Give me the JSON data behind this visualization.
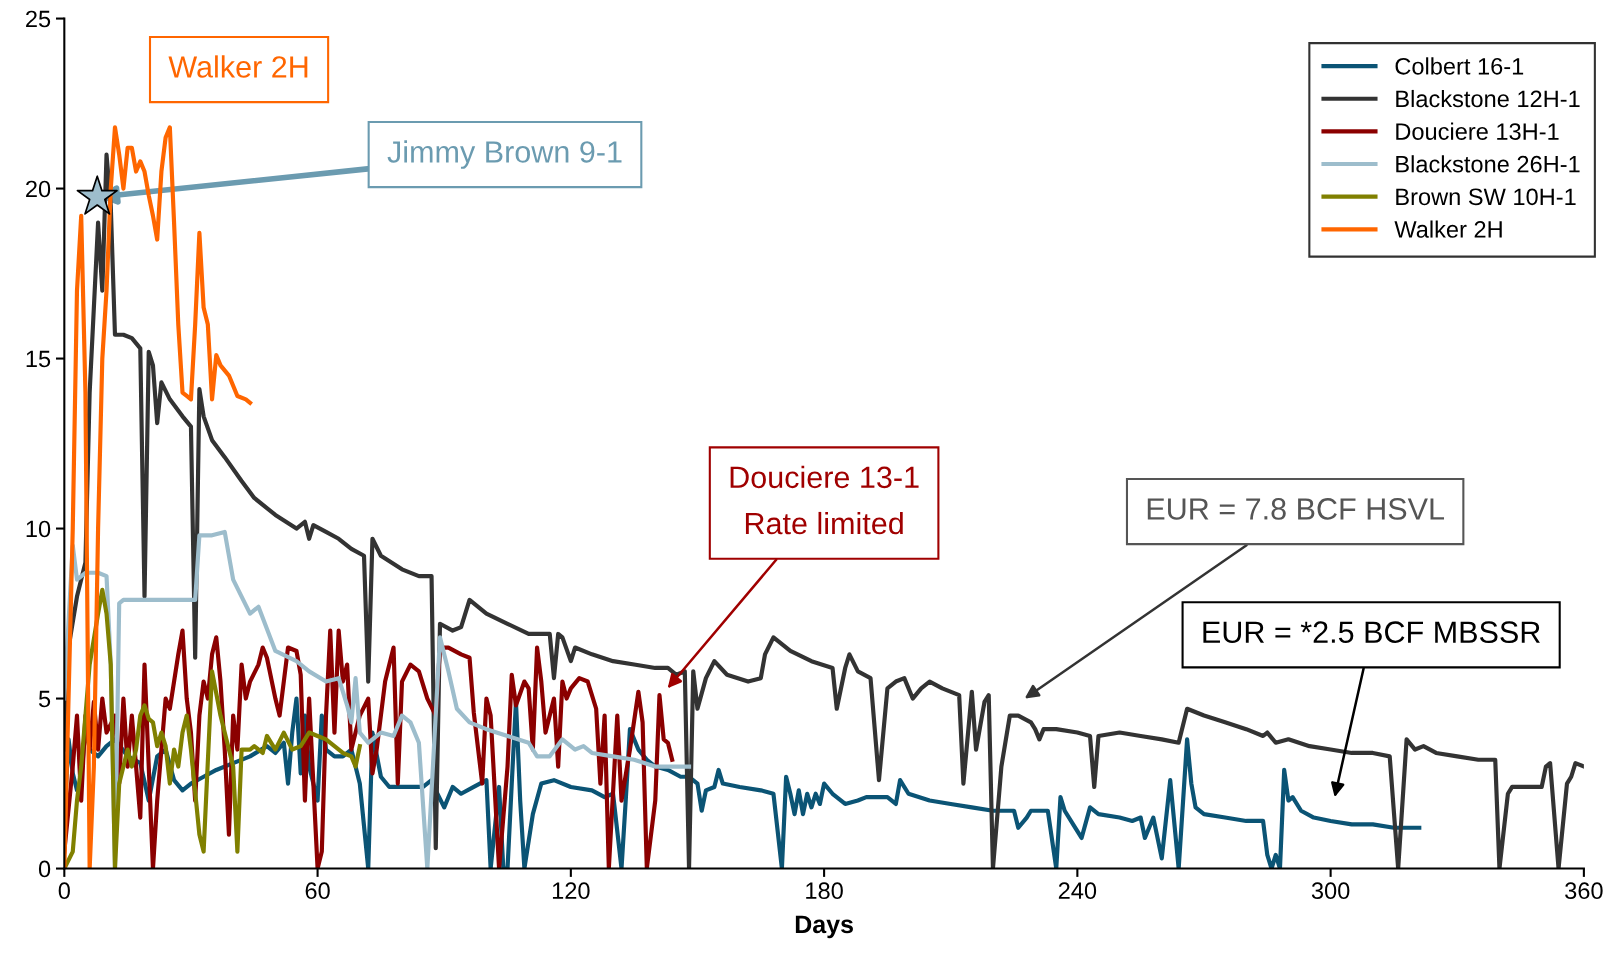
{
  "chart_data": {
    "type": "line",
    "xlabel": "Days",
    "xlim": [
      0,
      360
    ],
    "xticks": [
      0,
      60,
      120,
      180,
      240,
      300,
      360
    ],
    "ylim": [
      0,
      25
    ],
    "yticks": [
      0,
      5,
      10,
      15,
      20,
      25
    ],
    "grid": false,
    "legend": "top right",
    "marker": "none",
    "line_style": "solid",
    "series": [
      {
        "name": "Colbert 16-1",
        "color": "#0b5475",
        "x": [
          0,
          1,
          2,
          3,
          4,
          5,
          6,
          8,
          10,
          12,
          15,
          18,
          20,
          22,
          24,
          26,
          28,
          30,
          33,
          36,
          40,
          44,
          48,
          50,
          52,
          53,
          54,
          55,
          56,
          57,
          58,
          60,
          61,
          62,
          64,
          66,
          68,
          70,
          72,
          73,
          75,
          77,
          80,
          85,
          87,
          88,
          90,
          92,
          94,
          97,
          100,
          101,
          103,
          104,
          105,
          106,
          107,
          108,
          109,
          111,
          113,
          116,
          120,
          125,
          128,
          130,
          132,
          133,
          134,
          136,
          138,
          140,
          143,
          146,
          148,
          150,
          151,
          152,
          154,
          155,
          156,
          160,
          165,
          168,
          170,
          171,
          172,
          173,
          174,
          175,
          176,
          177,
          178,
          179,
          180,
          182,
          185,
          188,
          190,
          195,
          197,
          198,
          200,
          205,
          210,
          215,
          220,
          225,
          226,
          228,
          229,
          231,
          233,
          235,
          236,
          237,
          239,
          241,
          243,
          245,
          250,
          253,
          255,
          256,
          258,
          260,
          262,
          264,
          266,
          267,
          268,
          270,
          275,
          280,
          284,
          285,
          286,
          287,
          288,
          289,
          290,
          291,
          293,
          296,
          300,
          305,
          310,
          315,
          321
        ],
        "values": [
          1.5,
          3.8,
          2.8,
          2.3,
          2.6,
          4.2,
          3.5,
          3.3,
          3.6,
          3.8,
          3.3,
          3.1,
          2.0,
          3.3,
          3.5,
          2.6,
          2.3,
          2.5,
          2.7,
          2.9,
          3.1,
          3.3,
          3.6,
          3.4,
          3.7,
          2.5,
          4.0,
          5.0,
          2.8,
          4.5,
          3.0,
          2.0,
          4.5,
          3.5,
          3.3,
          3.3,
          3.5,
          2.5,
          0,
          4.0,
          2.7,
          2.4,
          2.4,
          2.4,
          2.6,
          2.3,
          1.8,
          2.4,
          2.2,
          2.4,
          2.6,
          0,
          2.4,
          0,
          0,
          2.5,
          4.9,
          2.0,
          0,
          1.6,
          2.5,
          2.6,
          2.4,
          2.3,
          2.1,
          2.2,
          0,
          2.0,
          4.1,
          3.5,
          3.2,
          3.0,
          2.9,
          2.7,
          2.7,
          2.5,
          1.7,
          2.3,
          2.4,
          2.9,
          2.5,
          2.4,
          2.3,
          2.2,
          0,
          2.7,
          2.2,
          1.6,
          2.3,
          1.6,
          2.2,
          1.8,
          2.2,
          1.9,
          2.5,
          2.2,
          1.9,
          2.0,
          2.1,
          2.1,
          1.9,
          2.6,
          2.2,
          2.0,
          1.9,
          1.8,
          1.7,
          1.7,
          1.2,
          1.5,
          1.7,
          1.7,
          1.7,
          0,
          2.1,
          1.7,
          1.3,
          0.9,
          1.8,
          1.6,
          1.5,
          1.4,
          1.5,
          0.9,
          1.5,
          0.3,
          2.6,
          0,
          3.8,
          2.5,
          1.8,
          1.6,
          1.5,
          1.4,
          1.4,
          0.4,
          0,
          0.4,
          0,
          2.9,
          2.0,
          2.1,
          1.7,
          1.5,
          1.4,
          1.3,
          1.3,
          1.2,
          1.2
        ]
      },
      {
        "name": "Blackstone 12H-1",
        "color": "#333333",
        "x": [
          0,
          1,
          3,
          5,
          6,
          8,
          9,
          10,
          11,
          12,
          14,
          16,
          18,
          19,
          20,
          21,
          22,
          23,
          25,
          28,
          30,
          31,
          32,
          33,
          35,
          38,
          42,
          45,
          50,
          55,
          57,
          58,
          59,
          62,
          65,
          68,
          71,
          72,
          73,
          75,
          80,
          84,
          87,
          88,
          89,
          92,
          94,
          96,
          100,
          105,
          110,
          115,
          116,
          117,
          118,
          120,
          121,
          125,
          130,
          135,
          140,
          143,
          145,
          147,
          148,
          149,
          150,
          152,
          154,
          157,
          162,
          165,
          166,
          168,
          172,
          177,
          182,
          183,
          185,
          186,
          188,
          191,
          193,
          195,
          197,
          199,
          201,
          203,
          205,
          208,
          212,
          213,
          215,
          216,
          218,
          219,
          220,
          222,
          224,
          226,
          229,
          230,
          231,
          232,
          235,
          240,
          243,
          244,
          245,
          250,
          255,
          260,
          264,
          266,
          270,
          275,
          280,
          284,
          285,
          287,
          290,
          295,
          300,
          305,
          310,
          314,
          316,
          318,
          320,
          322,
          325,
          330,
          335,
          339,
          340,
          342,
          343,
          348,
          350,
          351,
          352,
          354,
          356,
          357,
          358,
          360
        ],
        "values": [
          3.5,
          6.5,
          8.0,
          9.0,
          14.0,
          19.0,
          17.0,
          21.0,
          19.5,
          15.7,
          15.7,
          15.6,
          15.3,
          8.0,
          15.2,
          14.8,
          13.1,
          14.3,
          13.8,
          13.3,
          13.0,
          6.2,
          14.1,
          13.3,
          12.6,
          12.1,
          11.4,
          10.9,
          10.4,
          10.0,
          10.2,
          9.7,
          10.1,
          9.9,
          9.7,
          9.4,
          9.2,
          5.5,
          9.7,
          9.2,
          8.8,
          8.6,
          8.6,
          0.6,
          7.2,
          7.0,
          7.1,
          7.9,
          7.5,
          7.2,
          6.9,
          6.9,
          5.6,
          6.9,
          6.8,
          6.1,
          6.5,
          6.3,
          6.1,
          6.0,
          5.9,
          5.9,
          5.7,
          5.8,
          0,
          5.8,
          4.7,
          5.6,
          6.1,
          5.7,
          5.5,
          5.6,
          6.3,
          6.8,
          6.4,
          6.1,
          5.9,
          4.7,
          5.9,
          6.3,
          5.8,
          5.6,
          2.6,
          5.3,
          5.5,
          5.6,
          5.0,
          5.3,
          5.5,
          5.3,
          5.1,
          2.5,
          5.2,
          3.5,
          4.9,
          5.1,
          0,
          3.0,
          4.5,
          4.5,
          4.3,
          4.1,
          3.8,
          4.1,
          4.1,
          4.0,
          3.9,
          2.4,
          3.9,
          4.0,
          3.9,
          3.8,
          3.7,
          4.7,
          4.5,
          4.3,
          4.1,
          3.9,
          4.0,
          3.7,
          3.8,
          3.6,
          3.5,
          3.4,
          3.4,
          3.3,
          0,
          3.8,
          3.5,
          3.6,
          3.4,
          3.3,
          3.2,
          3.2,
          0,
          2.2,
          2.4,
          2.4,
          2.4,
          3.0,
          3.1,
          0,
          2.5,
          2.7,
          3.1,
          3.0
        ]
      },
      {
        "name": "Douciere 13H-1",
        "color": "#8b0000",
        "x": [
          0,
          2,
          3,
          4,
          5,
          6,
          7,
          8,
          9,
          10,
          12,
          13,
          14,
          15,
          16,
          18,
          19,
          20,
          21,
          22,
          24,
          25,
          27,
          28,
          29,
          30,
          31,
          32,
          33,
          34,
          35,
          36,
          37,
          38,
          39,
          40,
          41,
          42,
          43,
          44,
          46,
          47,
          48,
          50,
          51,
          53,
          55,
          56,
          57,
          58,
          60,
          61,
          62,
          63,
          64,
          65,
          66,
          67,
          68,
          70,
          72,
          73,
          74,
          76,
          78,
          79,
          80,
          82,
          84,
          86,
          88,
          89,
          91,
          94,
          96,
          97,
          99,
          100,
          101,
          103,
          105,
          106,
          107,
          109,
          110,
          111,
          112,
          113,
          114,
          116,
          117,
          118,
          119,
          120,
          122,
          124,
          126,
          127,
          128,
          129,
          131,
          132,
          134,
          136,
          137,
          138,
          140,
          141,
          142,
          143,
          144
        ],
        "values": [
          0.5,
          3.0,
          4.5,
          2.0,
          4.5,
          3.5,
          4.9,
          3.5,
          5.0,
          4.0,
          4.5,
          2.5,
          5.0,
          3.0,
          4.5,
          1.5,
          6.0,
          3.0,
          0,
          2.0,
          5.0,
          4.7,
          6.3,
          7.0,
          5.0,
          4.0,
          2.0,
          4.5,
          5.5,
          5.0,
          6.3,
          6.8,
          5.5,
          3.5,
          1.0,
          4.5,
          3.5,
          6.0,
          5.0,
          5.5,
          6.0,
          6.5,
          6.2,
          5.0,
          4.5,
          6.5,
          6.4,
          5.7,
          2.0,
          5.0,
          0,
          0.5,
          4.5,
          7.0,
          4.0,
          7.0,
          5.5,
          6.0,
          3.5,
          4.5,
          5.0,
          2.8,
          3.5,
          5.5,
          6.5,
          2.5,
          5.5,
          6.0,
          5.8,
          5.0,
          4.5,
          6.5,
          6.5,
          6.3,
          6.2,
          4.6,
          2.5,
          5.0,
          4.5,
          0,
          3.0,
          5.7,
          4.8,
          5.5,
          5.3,
          3.5,
          6.5,
          5.5,
          4.0,
          5.0,
          3.0,
          5.5,
          5.0,
          5.3,
          5.6,
          5.5,
          4.7,
          2.5,
          4.5,
          0,
          4.5,
          2.0,
          3.5,
          5.2,
          4.3,
          0,
          2.0,
          5.1,
          3.8,
          3.7,
          3.2
        ]
      },
      {
        "name": "Blackstone 26H-1",
        "color": "#9dbdcc",
        "x": [
          0,
          2,
          3,
          5,
          8,
          10,
          11,
          12,
          13,
          14,
          20,
          25,
          31,
          32,
          35,
          38,
          40,
          44,
          46,
          50,
          55,
          58,
          62,
          65,
          67,
          68,
          69,
          70,
          72,
          75,
          78,
          80,
          82,
          84,
          86,
          89,
          91,
          93,
          96,
          100,
          105,
          110,
          112,
          115,
          118,
          121,
          123,
          125,
          130,
          135,
          140,
          148
        ],
        "values": [
          5.0,
          9.5,
          8.5,
          8.7,
          8.7,
          8.6,
          6.0,
          0,
          7.8,
          7.9,
          7.9,
          7.9,
          7.9,
          9.8,
          9.8,
          9.9,
          8.5,
          7.5,
          7.7,
          6.4,
          6.1,
          5.8,
          5.5,
          5.6,
          4.8,
          4.3,
          5.6,
          4.0,
          3.7,
          4.0,
          3.9,
          4.5,
          4.3,
          3.7,
          0,
          6.8,
          5.8,
          4.7,
          4.3,
          4.1,
          3.9,
          3.7,
          3.3,
          3.3,
          3.8,
          3.5,
          3.6,
          3.4,
          3.3,
          3.2,
          3.0,
          3.0
        ]
      },
      {
        "name": "Brown SW 10H-1",
        "color": "#808000",
        "x": [
          0,
          2,
          3,
          4,
          5,
          6,
          8,
          9,
          10,
          11,
          12,
          13,
          14,
          15,
          16,
          17,
          18,
          19,
          20,
          21,
          22,
          23,
          24,
          25,
          26,
          27,
          28,
          29,
          30,
          32,
          33,
          35,
          37,
          38,
          40,
          41,
          42,
          44,
          45,
          47,
          48,
          50,
          52,
          54,
          56,
          58,
          60,
          62,
          64,
          66,
          68,
          69,
          70
        ],
        "values": [
          0,
          0.5,
          2.0,
          3.0,
          4.5,
          6.0,
          7.5,
          8.2,
          7.5,
          6.0,
          0,
          2.5,
          3.0,
          3.5,
          3.0,
          3.5,
          4.5,
          4.8,
          4.4,
          4.3,
          3.6,
          4.0,
          3.6,
          2.5,
          3.5,
          3.0,
          4.0,
          4.5,
          3.5,
          1.0,
          0.5,
          5.8,
          4.5,
          4.0,
          3.0,
          0.5,
          3.5,
          3.5,
          3.6,
          3.4,
          3.9,
          3.5,
          4.0,
          3.5,
          3.6,
          4.0,
          3.9,
          3.8,
          3.6,
          3.4,
          3.3,
          3.0,
          3.6
        ]
      },
      {
        "name": "Walker 2H",
        "color": "#ff6600",
        "x": [
          0,
          2,
          3,
          4,
          5,
          6,
          7,
          8,
          9,
          10,
          11,
          12,
          13,
          14,
          15,
          16,
          17,
          18,
          19,
          20,
          21,
          22,
          23,
          24,
          25,
          26,
          27,
          28,
          29,
          30,
          31,
          32,
          33,
          34,
          35,
          36,
          37,
          39,
          40,
          41,
          43,
          44
        ],
        "values": [
          0,
          10,
          17,
          19.2,
          14,
          0,
          3,
          10,
          15,
          17,
          20,
          21.8,
          21,
          20,
          21.2,
          21.2,
          20.5,
          20.8,
          20.5,
          19.8,
          19.2,
          18.5,
          20.5,
          21.5,
          21.8,
          19,
          16,
          14,
          13.9,
          13.8,
          16,
          18.7,
          16.5,
          16,
          13.8,
          15.1,
          14.8,
          14.5,
          14.2,
          13.9,
          13.8,
          13.7
        ]
      },
      {
        "type": "scatter",
        "marker": "star",
        "color": "#9dbdcc",
        "x": [
          7.8
        ],
        "values": [
          19.75
        ]
      }
    ],
    "annotations": [
      "Walker 2H",
      {
        "text": "Jimmy Brown 9-1",
        "x": 7.8,
        "y": 19.75
      },
      "Douciere 13-1\nRate limited",
      "EUR = 7.8 BCF HSVL",
      "EUR = *2.5 BCF MBSSR"
    ]
  }
}
